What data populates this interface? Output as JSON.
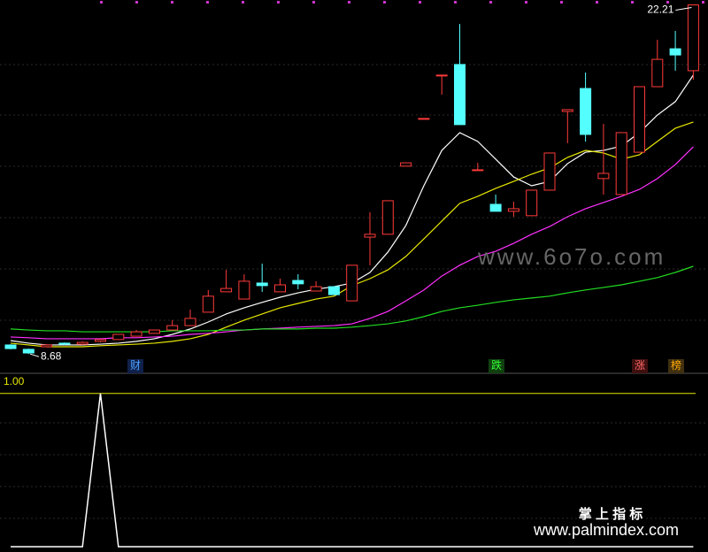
{
  "chart_data": [
    {
      "type": "candlestick",
      "ylim": [
        8.0,
        22.4
      ],
      "open": [
        9.03,
        8.86,
        8.96,
        9.1,
        9.06,
        9.17,
        9.24,
        9.37,
        9.48,
        9.61,
        9.78,
        10.3,
        11.09,
        10.81,
        11.43,
        11.09,
        11.53,
        11.12,
        11.29,
        10.74,
        13.21,
        13.32,
        15.96,
        17.81,
        19.49,
        19.9,
        15.82,
        14.48,
        14.21,
        14.04,
        15.03,
        18.08,
        18.97,
        15.48,
        14.86,
        16.5,
        19.04,
        20.51,
        19.66
      ],
      "close": [
        8.89,
        8.72,
        9.03,
        9.06,
        9.13,
        9.24,
        9.44,
        9.54,
        9.61,
        9.78,
        10.06,
        10.92,
        11.22,
        11.5,
        11.33,
        11.36,
        11.4,
        11.29,
        10.98,
        12.12,
        13.32,
        14.62,
        16.09,
        17.81,
        19.49,
        17.57,
        15.82,
        14.21,
        14.31,
        15.03,
        16.47,
        18.15,
        17.19,
        15.68,
        17.26,
        19.04,
        20.1,
        20.27,
        22.21
      ],
      "low": [
        8.86,
        8.68,
        8.96,
        9.03,
        9.03,
        9.13,
        9.24,
        9.37,
        9.48,
        9.61,
        9.78,
        10.3,
        11.09,
        10.81,
        11.09,
        11.09,
        11.19,
        11.12,
        10.98,
        10.74,
        12.12,
        13.32,
        15.96,
        17.81,
        18.73,
        17.57,
        15.82,
        14.21,
        14.0,
        14.04,
        15.03,
        16.85,
        16.91,
        14.86,
        14.86,
        16.5,
        19.04,
        19.66,
        19.31
      ],
      "high": [
        9.06,
        8.89,
        9.06,
        9.13,
        9.17,
        9.24,
        9.44,
        9.61,
        9.61,
        9.99,
        10.4,
        11.16,
        11.94,
        11.77,
        12.18,
        11.6,
        11.77,
        11.5,
        11.29,
        12.12,
        14.17,
        14.62,
        16.09,
        17.81,
        19.49,
        21.47,
        16.09,
        14.86,
        14.58,
        15.03,
        16.47,
        18.15,
        19.59,
        17.6,
        17.26,
        19.04,
        20.86,
        21.2,
        22.21
      ],
      "up_color": "#ff3a3a",
      "down_color": "#54ffff",
      "lines": [
        {
          "color": "#ffffff",
          "values": [
            9.2,
            9.1,
            9.03,
            9.03,
            9.03,
            9.06,
            9.1,
            9.17,
            9.27,
            9.44,
            9.65,
            9.92,
            10.23,
            10.47,
            10.68,
            10.88,
            11.05,
            11.19,
            11.29,
            11.43,
            11.84,
            12.63,
            13.66,
            15.2,
            16.57,
            17.26,
            16.92,
            16.23,
            15.54,
            15.2,
            15.37,
            16.06,
            16.5,
            16.57,
            16.74,
            17.26,
            17.94,
            18.46,
            19.49
          ]
        },
        {
          "color": "#e8e800",
          "values": [
            9.1,
            9.03,
            8.96,
            8.96,
            8.96,
            9.0,
            9.03,
            9.06,
            9.1,
            9.17,
            9.27,
            9.44,
            9.72,
            9.99,
            10.23,
            10.47,
            10.64,
            10.81,
            10.92,
            11.33,
            11.6,
            11.94,
            12.46,
            13.14,
            13.83,
            14.52,
            14.79,
            15.1,
            15.37,
            15.65,
            15.89,
            16.3,
            16.57,
            16.47,
            16.23,
            16.4,
            16.92,
            17.43,
            17.67
          ]
        },
        {
          "color": "#ff30ff",
          "values": [
            9.34,
            9.31,
            9.27,
            9.27,
            9.27,
            9.27,
            9.31,
            9.31,
            9.34,
            9.37,
            9.44,
            9.48,
            9.54,
            9.61,
            9.65,
            9.68,
            9.72,
            9.75,
            9.78,
            9.85,
            10.06,
            10.33,
            10.74,
            11.16,
            11.7,
            12.12,
            12.46,
            12.66,
            12.97,
            13.32,
            13.62,
            14.0,
            14.31,
            14.55,
            14.79,
            15.06,
            15.48,
            16.02,
            16.71
          ]
        },
        {
          "color": "#22dd22",
          "values": [
            9.65,
            9.61,
            9.58,
            9.58,
            9.54,
            9.54,
            9.54,
            9.54,
            9.54,
            9.58,
            9.58,
            9.58,
            9.61,
            9.61,
            9.65,
            9.65,
            9.65,
            9.68,
            9.68,
            9.72,
            9.78,
            9.85,
            9.96,
            10.13,
            10.33,
            10.47,
            10.57,
            10.68,
            10.78,
            10.85,
            10.92,
            11.05,
            11.16,
            11.26,
            11.36,
            11.5,
            11.64,
            11.84,
            12.08
          ]
        }
      ],
      "max_label": 22.21,
      "min_label": 8.68,
      "markers": [
        "财",
        "跌",
        "涨",
        "榜"
      ],
      "watermark": "www.6o7o.com"
    },
    {
      "type": "line",
      "ylim": [
        0,
        1.12
      ],
      "yticks": [
        {
          "value": 1,
          "label": "1.00"
        }
      ],
      "reference_color": "#e8e800",
      "series": [
        {
          "color": "#ffffff",
          "values": [
            0,
            0,
            0,
            0,
            0,
            1,
            0,
            0,
            0,
            0,
            0,
            0,
            0,
            0,
            0,
            0,
            0,
            0,
            0,
            0,
            0,
            0,
            0,
            0,
            0,
            0,
            0,
            0,
            0,
            0,
            0,
            0,
            0,
            0,
            0,
            0,
            0,
            0,
            0
          ]
        }
      ],
      "brand": "掌 上 指 标",
      "site": "www.palmindex.com"
    }
  ]
}
